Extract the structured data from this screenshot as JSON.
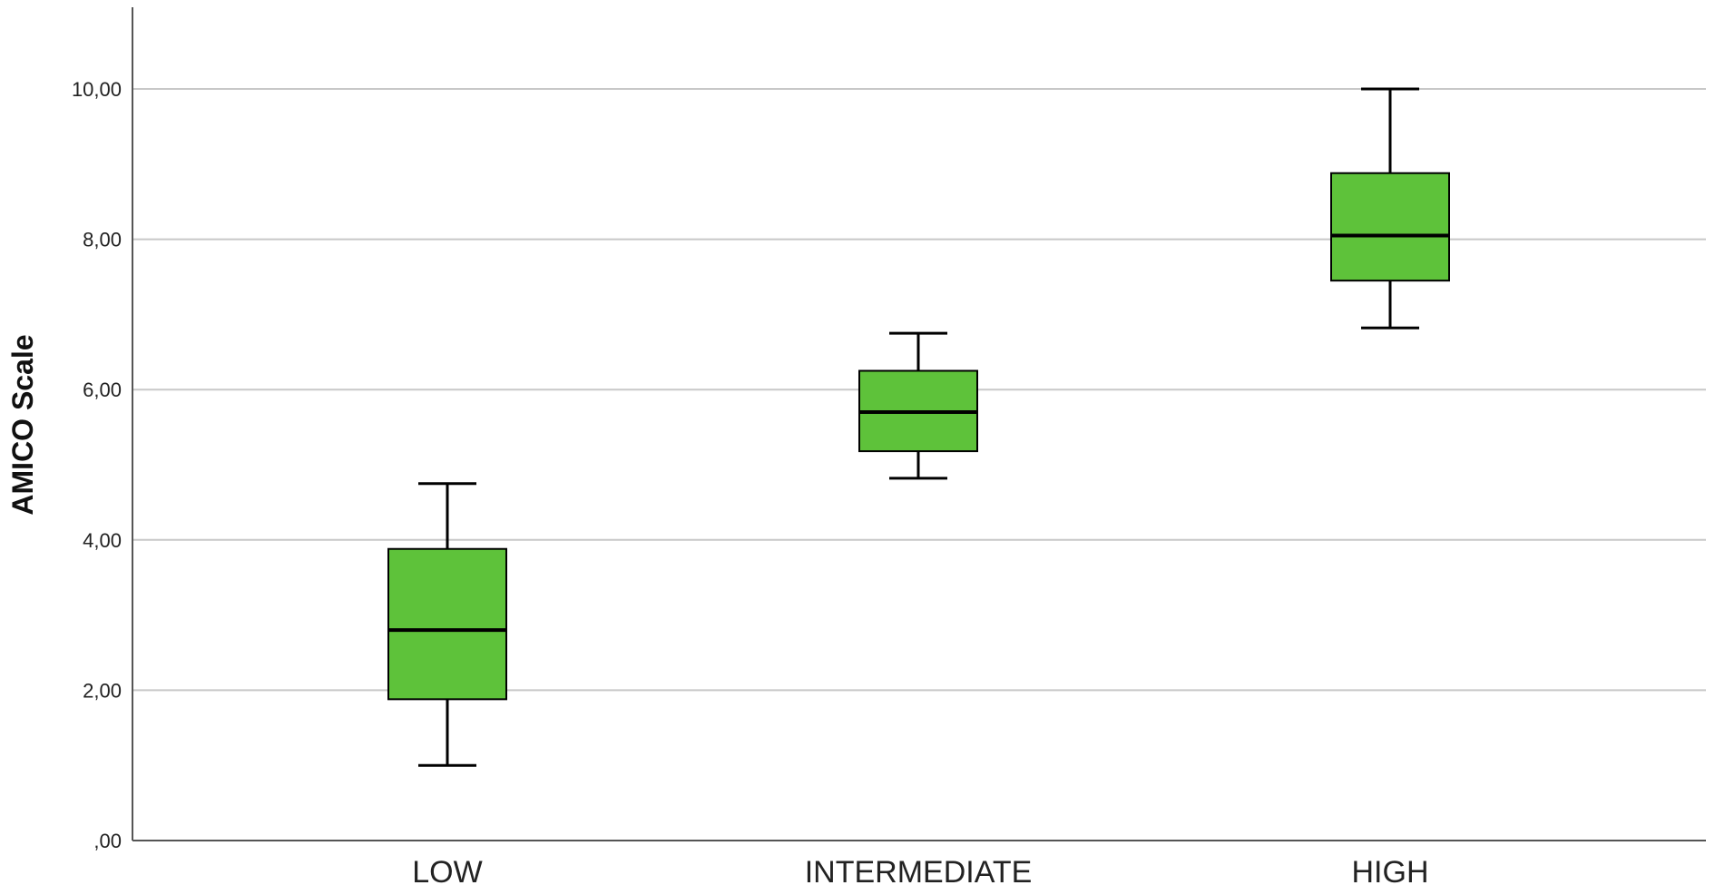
{
  "chart_data": {
    "type": "boxplot",
    "title": "",
    "xlabel": "",
    "ylabel": "AMICO Scale",
    "ylim": [
      0,
      10
    ],
    "yticks": [
      ",00",
      "2,00",
      "4,00",
      "6,00",
      "8,00",
      "10,00"
    ],
    "categories": [
      "LOW",
      "INTERMEDIATE",
      "HIGH"
    ],
    "boxes": [
      {
        "category": "LOW",
        "min": 1.0,
        "q1": 1.88,
        "median": 2.8,
        "q3": 3.88,
        "max": 4.75
      },
      {
        "category": "INTERMEDIATE",
        "min": 4.82,
        "q1": 5.18,
        "median": 5.7,
        "q3": 6.25,
        "max": 6.75
      },
      {
        "category": "HIGH",
        "min": 6.82,
        "q1": 7.45,
        "median": 8.05,
        "q3": 8.88,
        "max": 10.0
      }
    ],
    "grid": true,
    "colors": {
      "box_fill": "#5ec23a",
      "stroke": "#000000",
      "grid": "#c8c8c8",
      "axis": "#555555"
    }
  }
}
